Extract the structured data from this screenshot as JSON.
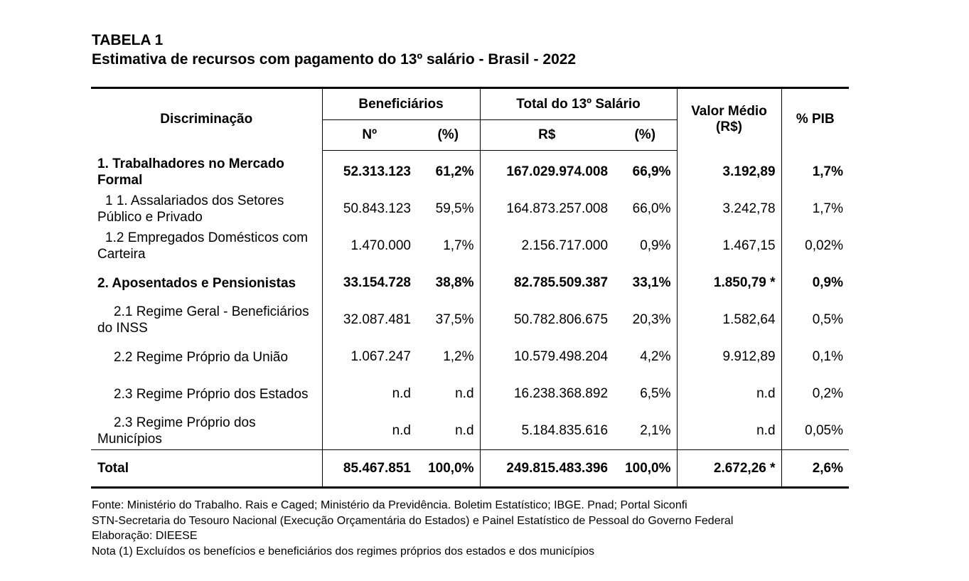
{
  "title": {
    "line1": "TABELA 1",
    "line2": "Estimativa de recursos com pagamento do 13º salário - Brasil - 2022"
  },
  "headers": {
    "discriminacao": "Discriminação",
    "beneficiarios": "Beneficiários",
    "total13": "Total do 13º Salário",
    "valor_medio": "Valor Médio",
    "valor_medio_unit": "(R$)",
    "pib": "% PIB",
    "n": "Nº",
    "pct1": "(%)",
    "rs": "R$",
    "pct2": "(%)"
  },
  "rows": [
    {
      "label": "1. Trabalhadores no Mercado Formal",
      "n": "52.313.123",
      "p1": "61,2%",
      "rs": "167.029.974.008",
      "p2": "66,9%",
      "vm": "3.192,89",
      "pib": "1,7%"
    },
    {
      "label": "1 1. Assalariados dos Setores Público e Privado",
      "n": "50.843.123",
      "p1": "59,5%",
      "rs": "164.873.257.008",
      "p2": "66,0%",
      "vm": "3.242,78",
      "pib": "1,7%"
    },
    {
      "label": "1.2 Empregados Domésticos com Carteira",
      "n": "1.470.000",
      "p1": "1,7%",
      "rs": "2.156.717.000",
      "p2": "0,9%",
      "vm": "1.467,15",
      "pib": "0,02%"
    },
    {
      "label": "2. Aposentados e Pensionistas",
      "n": "33.154.728",
      "p1": "38,8%",
      "rs": "82.785.509.387",
      "p2": "33,1%",
      "vm": "1.850,79 *",
      "pib": "0,9%"
    },
    {
      "label": "2.1 Regime Geral - Beneficiários do INSS",
      "n": "32.087.481",
      "p1": "37,5%",
      "rs": "50.782.806.675",
      "p2": "20,3%",
      "vm": "1.582,64",
      "pib": "0,5%"
    },
    {
      "label": "2.2 Regime Próprio da União",
      "n": "1.067.247",
      "p1": "1,2%",
      "rs": "10.579.498.204",
      "p2": "4,2%",
      "vm": "9.912,89",
      "pib": "0,1%"
    },
    {
      "label": "2.3 Regime Próprio dos Estados",
      "n": "n.d",
      "p1": "n.d",
      "rs": "16.238.368.892",
      "p2": "6,5%",
      "vm": "n.d",
      "pib": "0,2%"
    },
    {
      "label": "2.3 Regime Próprio dos Municípios",
      "n": "n.d",
      "p1": "n.d",
      "rs": "5.184.835.616",
      "p2": "2,1%",
      "vm": "n.d",
      "pib": "0,05%"
    }
  ],
  "total": {
    "label": "Total",
    "n": "85.467.851",
    "p1": "100,0%",
    "rs": "249.815.483.396",
    "p2": "100,0%",
    "vm": "2.672,26 *",
    "pib": "2,6%"
  },
  "notes": [
    "Fonte: Ministério do Trabalho. Rais e Caged; Ministério da Previdência. Boletim Estatístico; IBGE. Pnad; Portal Siconfi",
    "STN-Secretaria do Tesouro Nacional (Execução Orçamentária do Estados) e Painel Estatístico de Pessoal do Governo Federal",
    "Elaboração: DIEESE",
    "Nota (1) Excluídos os benefícios e beneficiários dos regimes próprios dos estados e dos municípios"
  ]
}
